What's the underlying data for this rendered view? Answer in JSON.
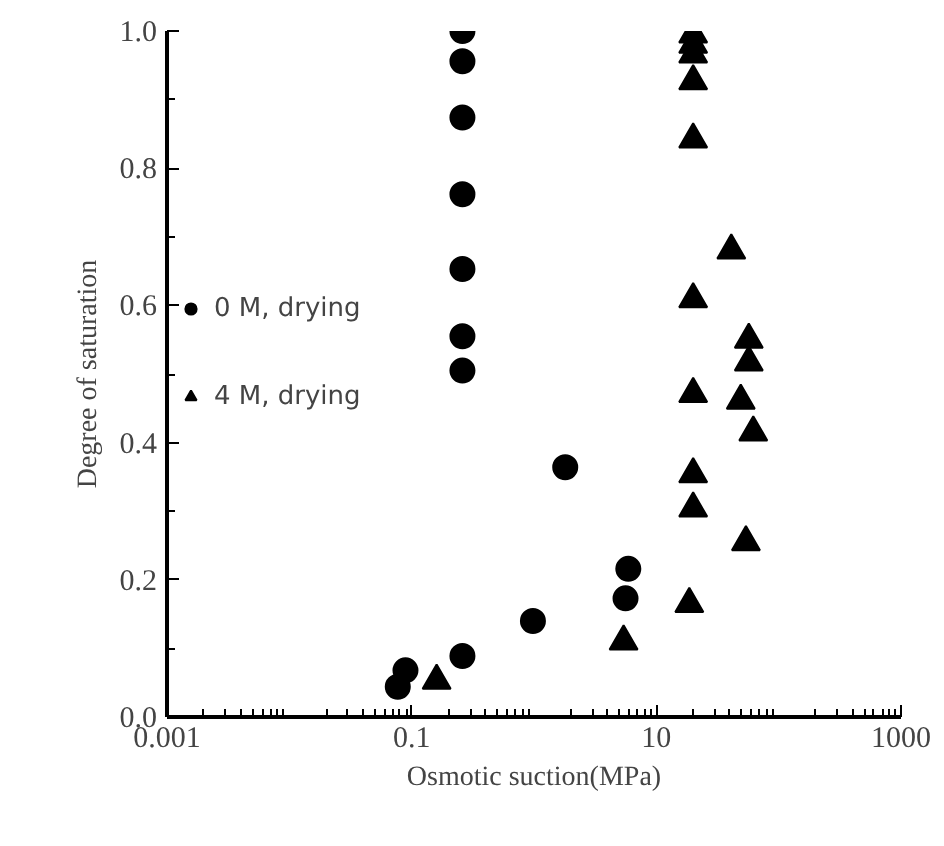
{
  "chart_data": {
    "type": "scatter",
    "xlabel": "Osmotic suction(MPa)",
    "ylabel": "Degree of saturation",
    "log": "x",
    "xlim": [
      0.001,
      1000
    ],
    "xticks": [
      0.001,
      0.1,
      10,
      1000
    ],
    "ylim": [
      0,
      1
    ],
    "yticks": [
      {
        "value": 0,
        "label": "0.0"
      },
      {
        "value": 0.2,
        "label": "0.2"
      },
      {
        "value": 0.4,
        "label": "0.4"
      },
      {
        "value": 0.6,
        "label": "0.6"
      },
      {
        "value": 0.8,
        "label": "0.8"
      },
      {
        "value": 1,
        "label": "1.0"
      }
    ],
    "grid": false,
    "legend": "left",
    "series": [
      {
        "name": "0 M, drying",
        "color": "#000000",
        "marker": "circle",
        "x": [
          0.26,
          0.26,
          0.26,
          0.26,
          0.26,
          0.26,
          0.26,
          0.26,
          0.077,
          0.089,
          0.98,
          1.8,
          5.9,
          5.6
        ],
        "values": [
          1.0,
          0.956,
          0.874,
          0.762,
          0.653,
          0.555,
          0.505,
          0.089,
          0.044,
          0.068,
          0.14,
          0.364,
          0.216,
          0.173
        ]
      },
      {
        "name": "4 M, drying",
        "color": "#000000",
        "marker": "triangle",
        "x": [
          0.16,
          20,
          20,
          20,
          20,
          20,
          20,
          20,
          20,
          20,
          41,
          57,
          57,
          49,
          62,
          54,
          18.6,
          5.4
        ],
        "values": [
          0.053,
          0.995,
          0.98,
          0.966,
          0.927,
          0.842,
          0.609,
          0.471,
          0.354,
          0.304,
          0.68,
          0.55,
          0.517,
          0.461,
          0.415,
          0.255,
          0.165,
          0.11
        ]
      }
    ]
  }
}
